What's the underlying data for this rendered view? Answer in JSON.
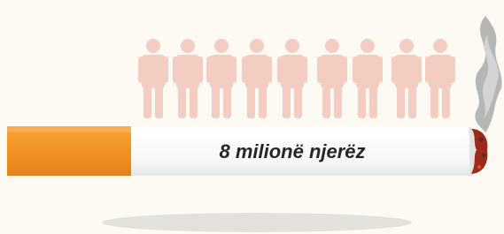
{
  "label": "8 milionë njerëz"
}
